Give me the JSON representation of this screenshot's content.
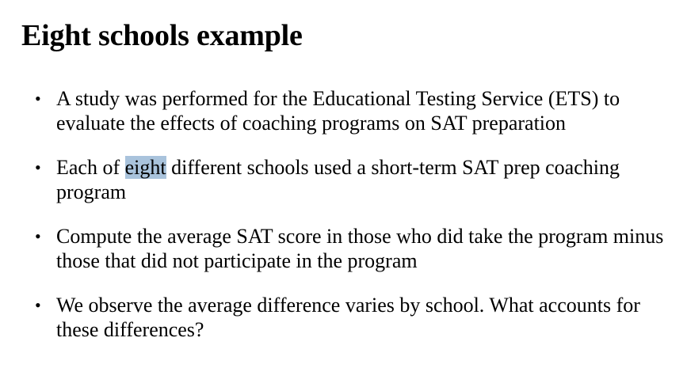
{
  "slide": {
    "title": "Eight schools example",
    "bullet_symbol": "•",
    "bullets": [
      {
        "text": "A study was performed for the Educational Testing Service (ETS) to evaluate the effects of coaching programs on SAT preparation"
      },
      {
        "before": "Each of ",
        "highlighted": "eight",
        "after": " different schools used a short-term SAT prep coaching program"
      },
      {
        "text": "Compute the average SAT score in those who did take the program minus those that did not participate in the program"
      },
      {
        "text": "We observe the average difference varies by school. What accounts for these differences?"
      }
    ],
    "highlight_color": "#a9c3dc"
  }
}
